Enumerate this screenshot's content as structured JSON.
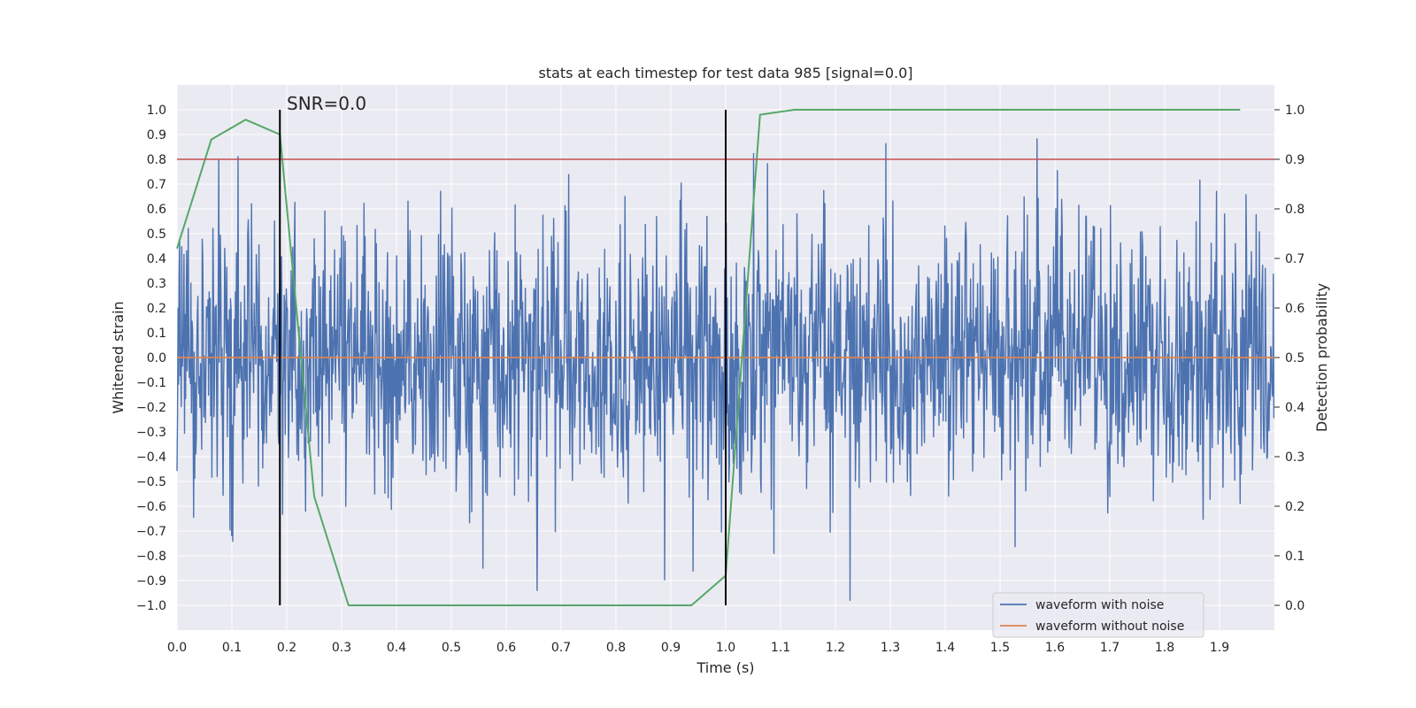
{
  "chart_data": {
    "type": "line",
    "title": "stats at each timestep for test data 985 [signal=0.0]",
    "xlabel": "Time (s)",
    "ylabel": "Whitened strain",
    "y2label": "Detection probability",
    "xlim": [
      0.0,
      2.0
    ],
    "ylim": [
      -1.1,
      1.1
    ],
    "y2lim": [
      -0.05,
      1.05
    ],
    "xticks": [
      "0.0",
      "0.1",
      "0.2",
      "0.3",
      "0.4",
      "0.5",
      "0.6",
      "0.7",
      "0.8",
      "0.9",
      "1.0",
      "1.1",
      "1.2",
      "1.3",
      "1.4",
      "1.5",
      "1.6",
      "1.7",
      "1.8",
      "1.9"
    ],
    "yticks": [
      "1.0",
      "0.9",
      "0.8",
      "0.7",
      "0.6",
      "0.5",
      "0.4",
      "0.3",
      "0.2",
      "0.1",
      "0.0",
      "−0.1",
      "−0.2",
      "−0.3",
      "−0.4",
      "−0.5",
      "−0.6",
      "−0.7",
      "−0.8",
      "−0.9",
      "−1.0"
    ],
    "y2ticks": [
      "1.0",
      "0.9",
      "0.8",
      "0.7",
      "0.6",
      "0.5",
      "0.4",
      "0.3",
      "0.2",
      "0.1",
      "0.0"
    ],
    "grid": true,
    "legend_position": "bottom-right",
    "annotation": "SNR=0.0",
    "series": [
      {
        "name": "waveform with noise",
        "color": "#4c72b0",
        "axis": "left",
        "samples": 2048,
        "amplitude_range": [
          -0.98,
          1.0
        ]
      },
      {
        "name": "waveform without noise",
        "color": "#dd8452",
        "axis": "left",
        "values_constant": 0.0
      },
      {
        "color": "#55a868",
        "axis": "right",
        "x": [
          0.0,
          0.0625,
          0.125,
          0.1875,
          0.25,
          0.3125,
          0.375,
          0.4375,
          0.5,
          0.5625,
          0.625,
          0.6875,
          0.75,
          0.8125,
          0.875,
          0.9375,
          1.0,
          1.0625,
          1.125,
          1.1875,
          1.25,
          1.3125,
          1.375,
          1.4375,
          1.5,
          1.5625,
          1.625,
          1.6875,
          1.75,
          1.8125,
          1.875,
          1.9375
        ],
        "values": [
          0.72,
          0.94,
          0.98,
          0.95,
          0.22,
          0.0,
          0.0,
          0.0,
          0.0,
          0.0,
          0.0,
          0.0,
          0.0,
          0.0,
          0.0,
          0.0,
          0.06,
          0.99,
          1.0,
          1.0,
          1.0,
          1.0,
          1.0,
          1.0,
          1.0,
          1.0,
          1.0,
          1.0,
          1.0,
          1.0,
          1.0,
          1.0
        ]
      }
    ],
    "hlines": [
      {
        "y2": 0.9,
        "color": "#c44e52"
      }
    ],
    "vlines": [
      {
        "x": 0.1875,
        "y2_range": [
          0.0,
          1.0
        ],
        "color": "#000000"
      },
      {
        "x": 1.0,
        "y2_range": [
          0.0,
          1.0
        ],
        "color": "#000000"
      }
    ]
  }
}
